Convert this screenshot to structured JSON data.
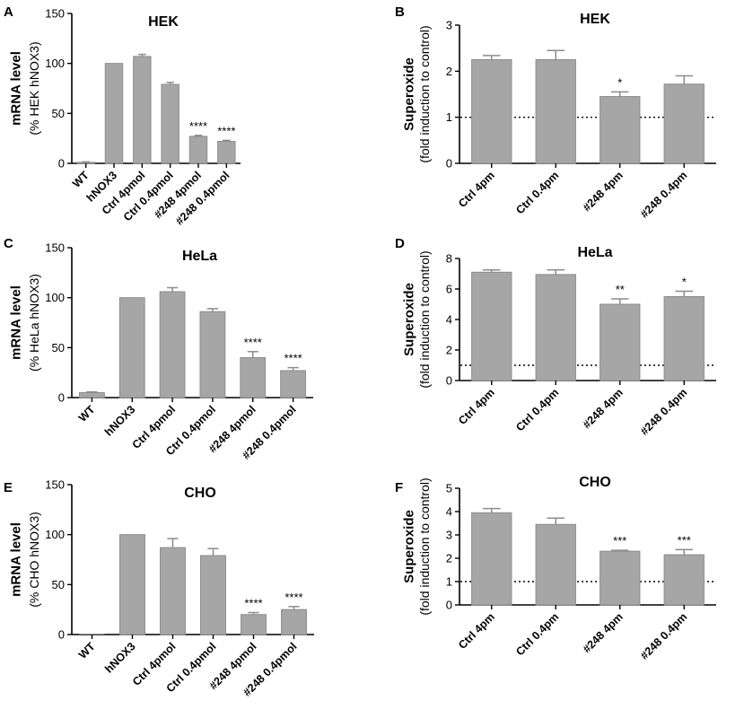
{
  "figure": {
    "bar_color": "#a6a6a6",
    "bar_edge": "#8c8c8c",
    "axis_color": "#000000"
  },
  "chart_data": [
    {
      "panel": "A",
      "type": "bar",
      "title": "HEK",
      "ylabel": "mRNA level",
      "ylabel2": "(% HEK hNOX3)",
      "ylim": [
        0,
        150
      ],
      "yticks": [
        0,
        50,
        100,
        150
      ],
      "categories": [
        "WT",
        "hNOX3",
        "Ctrl 4pmol",
        "Ctrl 0.4pmol",
        "#248 4pmol",
        "#248 0.4pmol"
      ],
      "values": [
        1,
        100,
        107,
        79,
        27,
        22
      ],
      "errors": [
        0.5,
        0,
        2,
        2,
        1,
        1
      ],
      "significance": [
        "",
        "",
        "",
        "",
        "****",
        "****"
      ],
      "reference_line": null
    },
    {
      "panel": "B",
      "type": "bar",
      "title": "HEK",
      "ylabel": "Superoxide",
      "ylabel2": "(fold induction to control)",
      "ylim": [
        0,
        3
      ],
      "yticks": [
        0,
        1,
        2,
        3
      ],
      "categories": [
        "Ctrl 4pm",
        "Ctrl 0.4pm",
        "#248 4pm",
        "#248 0.4pm"
      ],
      "values": [
        2.25,
        2.25,
        1.45,
        1.72
      ],
      "errors": [
        0.09,
        0.2,
        0.1,
        0.18
      ],
      "significance": [
        "",
        "",
        "*",
        ""
      ],
      "reference_line": 1
    },
    {
      "panel": "C",
      "type": "bar",
      "title": "HeLa",
      "ylabel": "mRNA level",
      "ylabel2": "(% HeLa hNOX3)",
      "ylim": [
        0,
        150
      ],
      "yticks": [
        0,
        50,
        100,
        150
      ],
      "categories": [
        "WT",
        "hNOX3",
        "Ctrl 4pmol",
        "Ctrl 0.4pmol",
        "#248 4pmol",
        "#248 0.4pmol"
      ],
      "values": [
        5,
        100,
        106,
        86,
        40,
        27
      ],
      "errors": [
        0.7,
        0,
        4,
        3,
        6,
        3
      ],
      "significance": [
        "",
        "",
        "",
        "",
        "****",
        "****"
      ],
      "reference_line": null
    },
    {
      "panel": "D",
      "type": "bar",
      "title": "HeLa",
      "ylabel": "Superoxide",
      "ylabel2": "(fold induction to control)",
      "ylim": [
        0,
        8
      ],
      "yticks": [
        0,
        2,
        4,
        6,
        8
      ],
      "categories": [
        "Ctrl 4pm",
        "Ctrl 0.4pm",
        "#248 4pm",
        "#248 0.4pm"
      ],
      "values": [
        7.1,
        6.95,
        5.0,
        5.5
      ],
      "errors": [
        0.15,
        0.3,
        0.35,
        0.35
      ],
      "significance": [
        "",
        "",
        "**",
        "*"
      ],
      "reference_line": 1
    },
    {
      "panel": "E",
      "type": "bar",
      "title": "CHO",
      "ylabel": "mRNA level",
      "ylabel2": "(% CHO hNOX3)",
      "ylim": [
        0,
        150
      ],
      "yticks": [
        0,
        50,
        100,
        150
      ],
      "categories": [
        "WT",
        "hNOX3",
        "Ctrl 4pmol",
        "Ctrl 0.4pmol",
        "#248 4pmol",
        "#248 0.4pmol"
      ],
      "values": [
        0,
        100,
        87,
        79,
        20,
        25
      ],
      "errors": [
        0,
        0,
        9,
        7,
        2,
        3
      ],
      "significance": [
        "",
        "",
        "",
        "",
        "****",
        "****"
      ],
      "reference_line": null
    },
    {
      "panel": "F",
      "type": "bar",
      "title": "CHO",
      "ylabel": "Superoxide",
      "ylabel2": "(fold induction to control)",
      "ylim": [
        0,
        5
      ],
      "yticks": [
        0,
        1,
        2,
        3,
        4,
        5
      ],
      "categories": [
        "Ctrl 4pm",
        "Ctrl 0.4pm",
        "#248 4pm",
        "#248 0.4pm"
      ],
      "values": [
        3.95,
        3.45,
        2.3,
        2.15
      ],
      "errors": [
        0.18,
        0.27,
        0.04,
        0.22
      ],
      "significance": [
        "",
        "",
        "***",
        "***"
      ],
      "reference_line": 1
    }
  ]
}
